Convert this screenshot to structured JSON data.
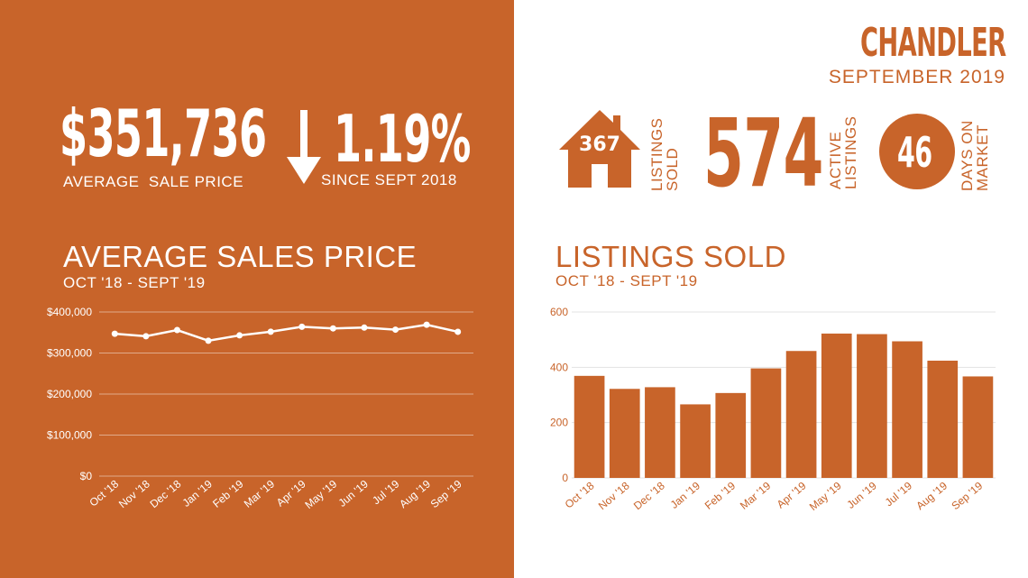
{
  "headline": {
    "avg_sale_price": "$351,736",
    "avg_sale_price_label": "AVERAGE  SALE PRICE",
    "change_pct": "1.19%",
    "change_label": "SINCE SEPT 2018",
    "change_direction": "down"
  },
  "location": {
    "city": "CHANDLER",
    "period": "SEPTEMBER 2019"
  },
  "stats": {
    "listings_sold_value": "367",
    "listings_sold_label_1": "LISTINGS",
    "listings_sold_label_2": "SOLD",
    "active_listings_value": "574",
    "active_listings_label_1": "ACTIVE",
    "active_listings_label_2": "LISTINGS",
    "days_on_market_value": "46",
    "days_on_market_label_1": "DAYS ON",
    "days_on_market_label_2": "MARKET"
  },
  "colors": {
    "accent": "#c8642a",
    "text_on_accent": "#ffffff"
  },
  "chart_data": [
    {
      "type": "line",
      "title": "AVERAGE SALES PRICE",
      "subtitle": "OCT '18 - SEPT '19",
      "categories": [
        "Oct '18",
        "Nov '18",
        "Dec '18",
        "Jan '19",
        "Feb '19",
        "Mar '19",
        "Apr '19",
        "May '19",
        "Jun '19",
        "Jul '19",
        "Aug '19",
        "Sep '19"
      ],
      "values": [
        347000,
        341000,
        356000,
        330000,
        343000,
        352000,
        364000,
        360000,
        362000,
        357000,
        369000,
        351736
      ],
      "yticks": [
        "$0",
        "$100,000",
        "$200,000",
        "$300,000",
        "$400,000"
      ],
      "ylim": [
        0,
        400000
      ],
      "grid": true
    },
    {
      "type": "bar",
      "title": "LISTINGS SOLD",
      "subtitle": "OCT '18 - SEPT '19",
      "categories": [
        "Oct '18",
        "Nov '18",
        "Dec '18",
        "Jan '19",
        "Feb '19",
        "Mar '19",
        "Apr '19",
        "May '19",
        "Jun '19",
        "Jul '19",
        "Aug '19",
        "Sep '19"
      ],
      "values": [
        369,
        322,
        328,
        266,
        307,
        396,
        459,
        522,
        520,
        494,
        424,
        367
      ],
      "yticks": [
        "0",
        "200",
        "400",
        "600"
      ],
      "ylim": [
        0,
        600
      ],
      "grid": true
    }
  ]
}
